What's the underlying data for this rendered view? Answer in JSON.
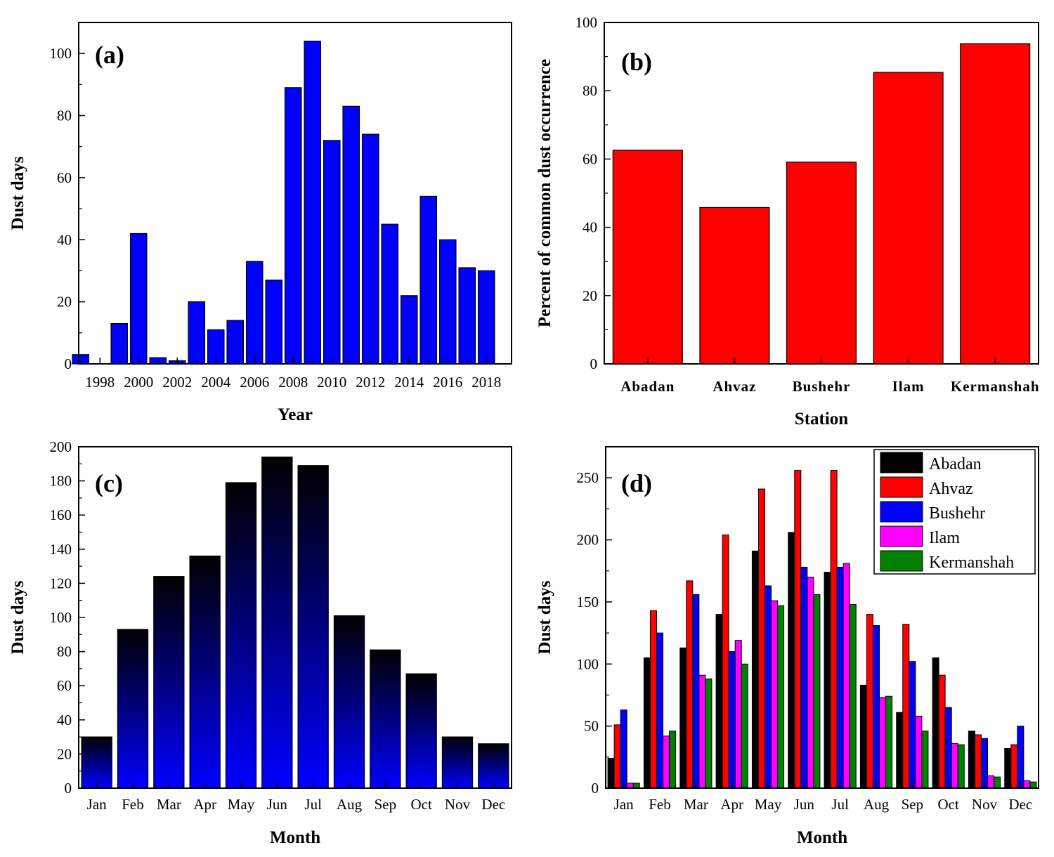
{
  "chart_data": [
    {
      "id": "a",
      "type": "bar",
      "panel_label": "(a)",
      "xlabel": "Year",
      "ylabel": "Dust days",
      "x": [
        1997,
        1998,
        1999,
        2000,
        2001,
        2002,
        2003,
        2004,
        2005,
        2006,
        2007,
        2008,
        2009,
        2010,
        2011,
        2012,
        2013,
        2014,
        2015,
        2016,
        2017,
        2018
      ],
      "values": [
        3,
        0,
        13,
        42,
        2,
        1,
        20,
        11,
        14,
        33,
        27,
        89,
        104,
        72,
        83,
        74,
        45,
        22,
        54,
        40,
        31,
        30
      ],
      "xticks": [
        "1998",
        "2000",
        "2002",
        "2004",
        "2006",
        "2008",
        "2010",
        "2012",
        "2014",
        "2016",
        "2018"
      ],
      "xlim": [
        1996.9,
        2019.3
      ],
      "ylim": [
        0,
        110
      ],
      "yticks": [
        0,
        20,
        40,
        60,
        80,
        100
      ],
      "color": "#0000ff"
    },
    {
      "id": "b",
      "type": "bar",
      "panel_label": "(b)",
      "xlabel": "Station",
      "ylabel": "Percent of common dust occurrence",
      "categories": [
        "Abadan",
        "Ahvaz",
        "Bushehr",
        "Ilam",
        "Kermanshah"
      ],
      "values": [
        62.6,
        45.8,
        59.1,
        85.4,
        93.8
      ],
      "ylim": [
        0,
        100
      ],
      "yticks": [
        0,
        20,
        40,
        60,
        80,
        100
      ],
      "color": "#ff0000"
    },
    {
      "id": "c",
      "type": "bar",
      "panel_label": "(c)",
      "xlabel": "Month",
      "ylabel": "Dust days",
      "categories": [
        "Jan",
        "Feb",
        "Mar",
        "Apr",
        "May",
        "Jun",
        "Jul",
        "Aug",
        "Sep",
        "Oct",
        "Nov",
        "Dec"
      ],
      "values": [
        30,
        93,
        124,
        136,
        179,
        194,
        189,
        101,
        81,
        67,
        30,
        26
      ],
      "ylim": [
        0,
        200
      ],
      "yticks": [
        0,
        20,
        40,
        60,
        80,
        100,
        120,
        140,
        160,
        180,
        200
      ],
      "color": "#0000ff",
      "gradient_top_color": "#000000"
    },
    {
      "id": "d",
      "type": "bar",
      "panel_label": "(d)",
      "xlabel": "Month",
      "ylabel": "Dust days",
      "categories": [
        "Jan",
        "Feb",
        "Mar",
        "Apr",
        "May",
        "Jun",
        "Jul",
        "Aug",
        "Sep",
        "Oct",
        "Nov",
        "Dec"
      ],
      "ylim": [
        0,
        275
      ],
      "yticks": [
        0,
        50,
        100,
        150,
        200,
        250
      ],
      "legend_position": "top-right",
      "series": [
        {
          "name": "Abadan",
          "color": "#000000",
          "values": [
            24,
            105,
            113,
            140,
            191,
            206,
            174,
            83,
            61,
            105,
            46,
            32
          ]
        },
        {
          "name": "Ahvaz",
          "color": "#ff0000",
          "values": [
            51,
            143,
            167,
            204,
            241,
            256,
            256,
            140,
            132,
            91,
            43,
            35
          ]
        },
        {
          "name": "Bushehr",
          "color": "#0000ff",
          "values": [
            63,
            125,
            156,
            110,
            163,
            178,
            178,
            131,
            102,
            65,
            40,
            50
          ]
        },
        {
          "name": "Ilam",
          "color": "#ff00ff",
          "values": [
            4,
            42,
            91,
            119,
            151,
            170,
            181,
            73,
            58,
            36,
            10,
            6
          ]
        },
        {
          "name": "Kermanshah",
          "color": "#008000",
          "values": [
            4,
            46,
            88,
            100,
            147,
            156,
            148,
            74,
            46,
            35,
            9,
            5
          ]
        }
      ]
    }
  ]
}
